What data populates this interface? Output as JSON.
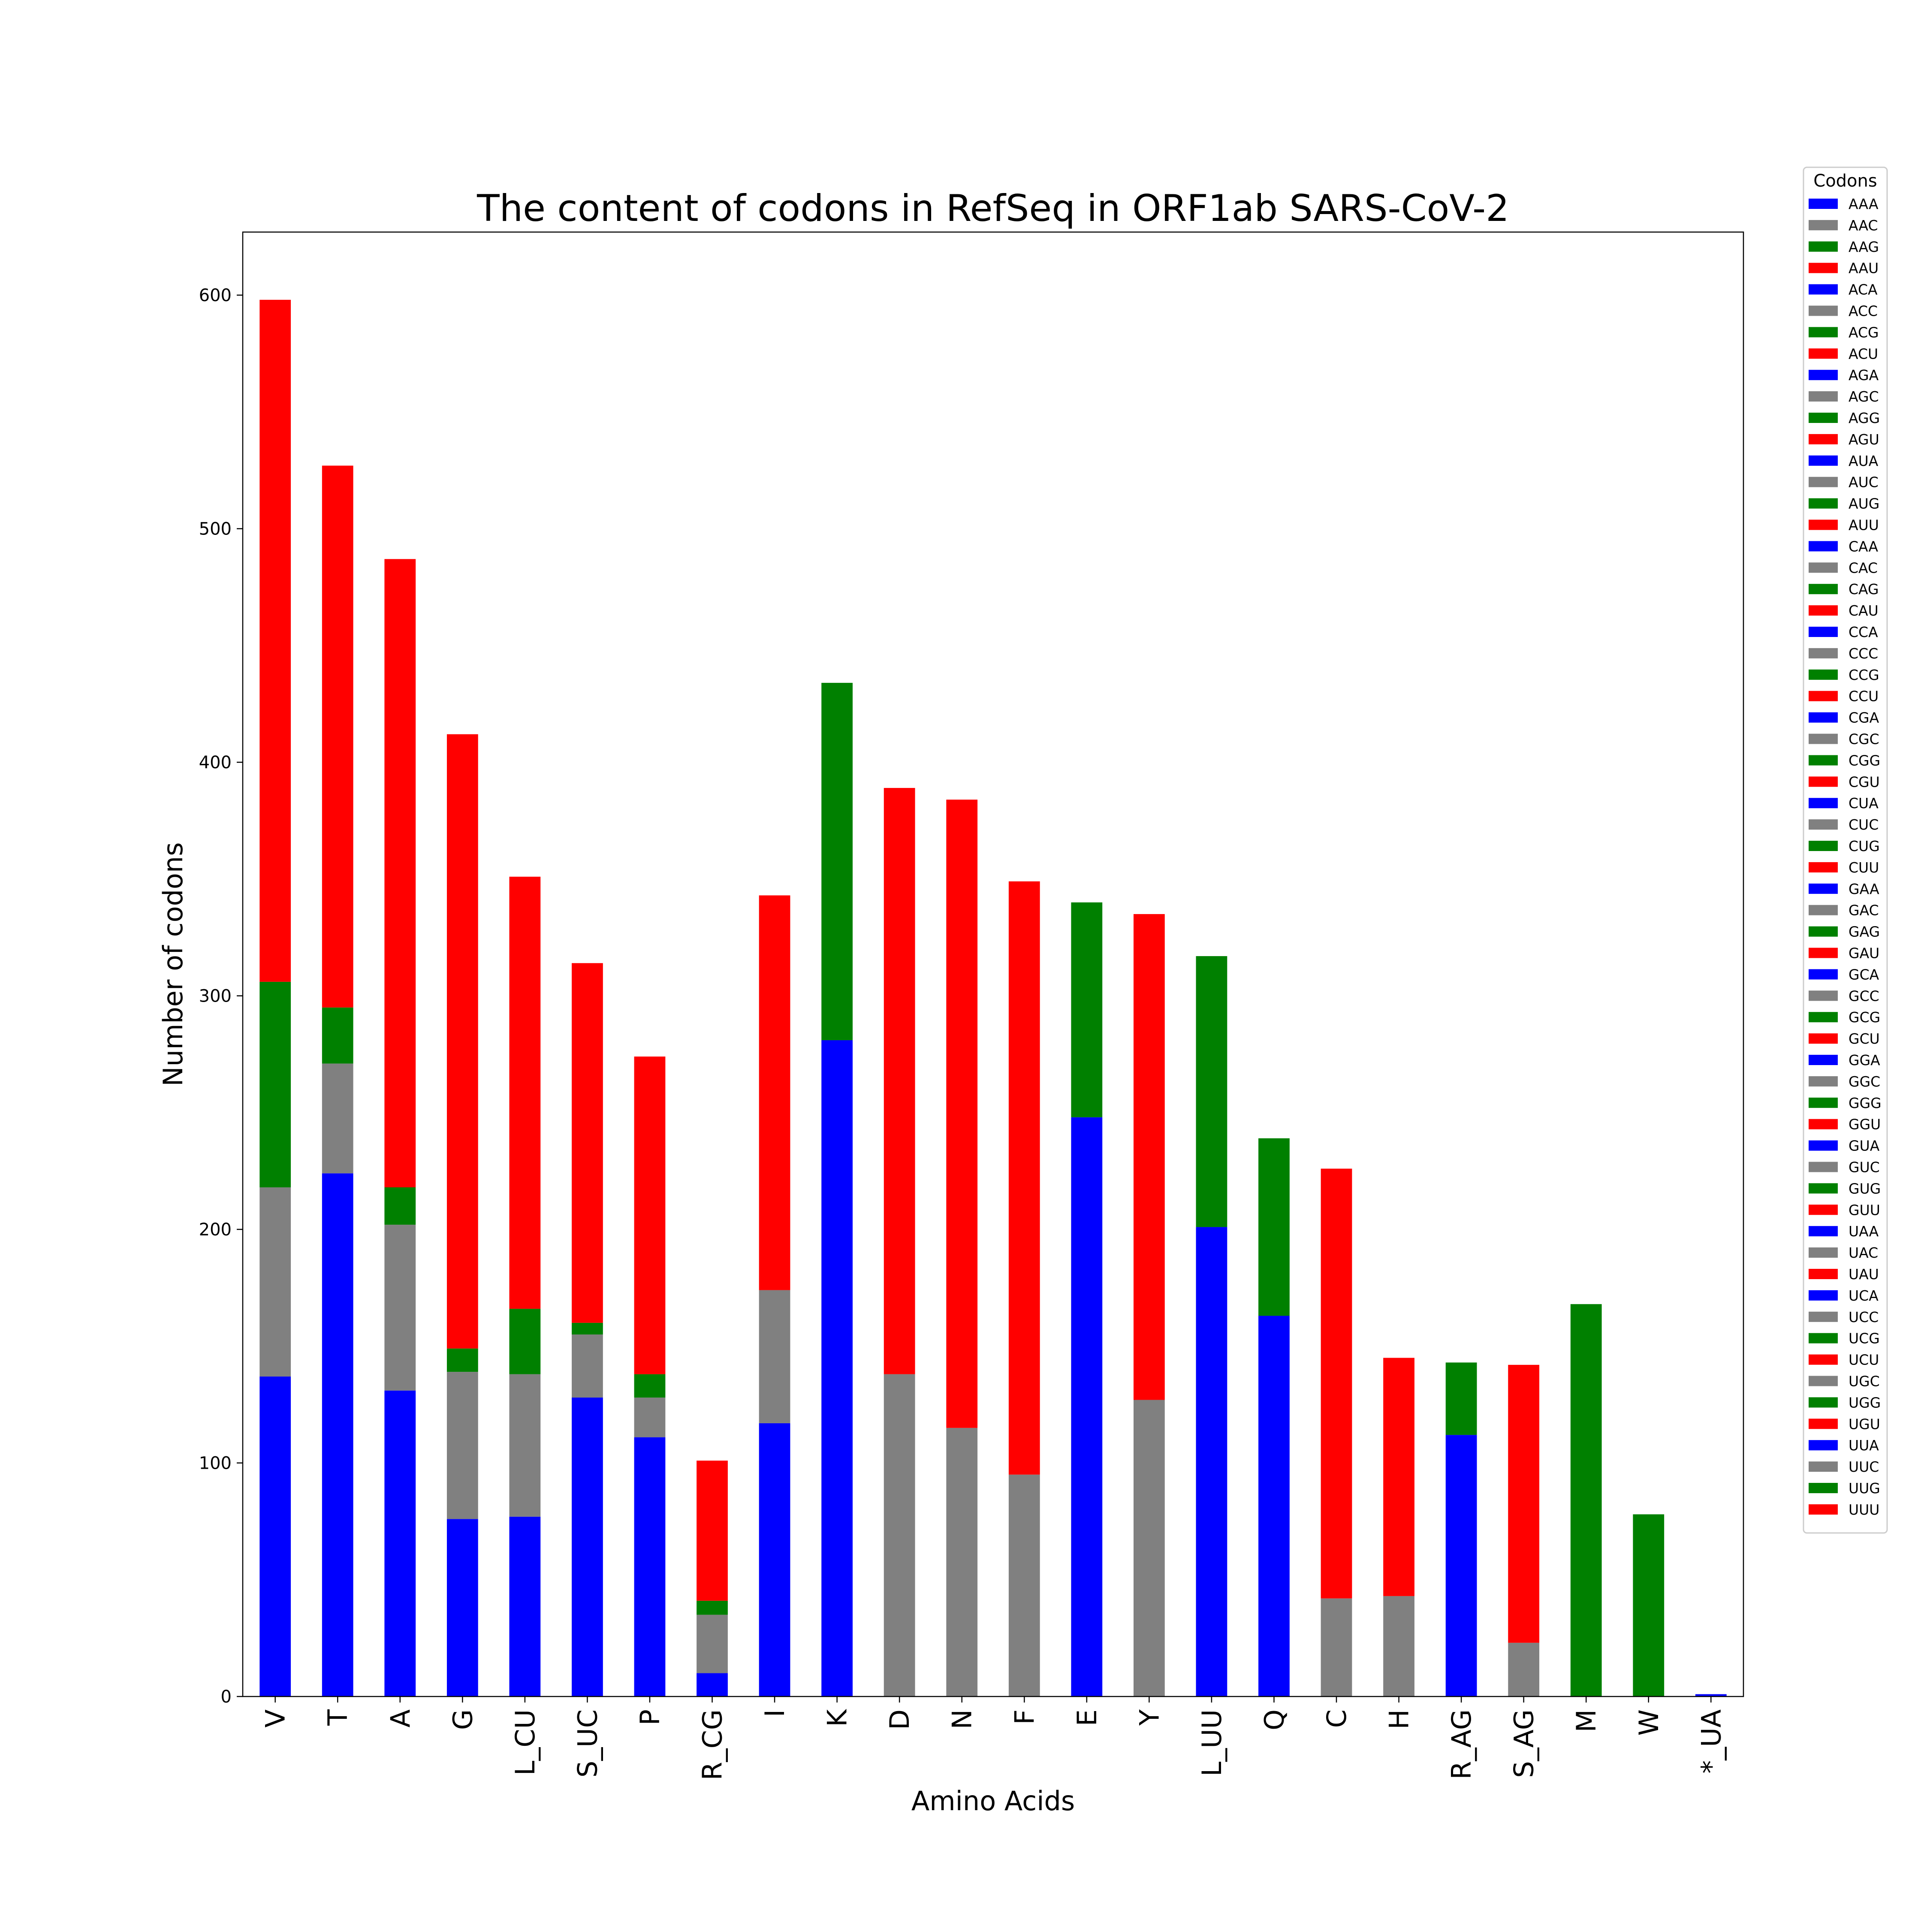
{
  "chart_data": {
    "type": "bar",
    "stacked": true,
    "title": "The content of codons in RefSeq in ORF1ab SARS-CoV-2",
    "xlabel": "Amino Acids",
    "ylabel": "Number of codons",
    "ylim": [
      0,
      627
    ],
    "yticks": [
      0,
      100,
      200,
      300,
      400,
      500,
      600
    ],
    "grid": false,
    "legend": {
      "title": "Codons",
      "placement": "outside-right",
      "entries": [
        {
          "label": "AAA",
          "color": "#0000ff"
        },
        {
          "label": "AAC",
          "color": "#808080"
        },
        {
          "label": "AAG",
          "color": "#008000"
        },
        {
          "label": "AAU",
          "color": "#ff0000"
        },
        {
          "label": "ACA",
          "color": "#0000ff"
        },
        {
          "label": "ACC",
          "color": "#808080"
        },
        {
          "label": "ACG",
          "color": "#008000"
        },
        {
          "label": "ACU",
          "color": "#ff0000"
        },
        {
          "label": "AGA",
          "color": "#0000ff"
        },
        {
          "label": "AGC",
          "color": "#808080"
        },
        {
          "label": "AGG",
          "color": "#008000"
        },
        {
          "label": "AGU",
          "color": "#ff0000"
        },
        {
          "label": "AUA",
          "color": "#0000ff"
        },
        {
          "label": "AUC",
          "color": "#808080"
        },
        {
          "label": "AUG",
          "color": "#008000"
        },
        {
          "label": "AUU",
          "color": "#ff0000"
        },
        {
          "label": "CAA",
          "color": "#0000ff"
        },
        {
          "label": "CAC",
          "color": "#808080"
        },
        {
          "label": "CAG",
          "color": "#008000"
        },
        {
          "label": "CAU",
          "color": "#ff0000"
        },
        {
          "label": "CCA",
          "color": "#0000ff"
        },
        {
          "label": "CCC",
          "color": "#808080"
        },
        {
          "label": "CCG",
          "color": "#008000"
        },
        {
          "label": "CCU",
          "color": "#ff0000"
        },
        {
          "label": "CGA",
          "color": "#0000ff"
        },
        {
          "label": "CGC",
          "color": "#808080"
        },
        {
          "label": "CGG",
          "color": "#008000"
        },
        {
          "label": "CGU",
          "color": "#ff0000"
        },
        {
          "label": "CUA",
          "color": "#0000ff"
        },
        {
          "label": "CUC",
          "color": "#808080"
        },
        {
          "label": "CUG",
          "color": "#008000"
        },
        {
          "label": "CUU",
          "color": "#ff0000"
        },
        {
          "label": "GAA",
          "color": "#0000ff"
        },
        {
          "label": "GAC",
          "color": "#808080"
        },
        {
          "label": "GAG",
          "color": "#008000"
        },
        {
          "label": "GAU",
          "color": "#ff0000"
        },
        {
          "label": "GCA",
          "color": "#0000ff"
        },
        {
          "label": "GCC",
          "color": "#808080"
        },
        {
          "label": "GCG",
          "color": "#008000"
        },
        {
          "label": "GCU",
          "color": "#ff0000"
        },
        {
          "label": "GGA",
          "color": "#0000ff"
        },
        {
          "label": "GGC",
          "color": "#808080"
        },
        {
          "label": "GGG",
          "color": "#008000"
        },
        {
          "label": "GGU",
          "color": "#ff0000"
        },
        {
          "label": "GUA",
          "color": "#0000ff"
        },
        {
          "label": "GUC",
          "color": "#808080"
        },
        {
          "label": "GUG",
          "color": "#008000"
        },
        {
          "label": "GUU",
          "color": "#ff0000"
        },
        {
          "label": "UAA",
          "color": "#0000ff"
        },
        {
          "label": "UAC",
          "color": "#808080"
        },
        {
          "label": "UAU",
          "color": "#ff0000"
        },
        {
          "label": "UCA",
          "color": "#0000ff"
        },
        {
          "label": "UCC",
          "color": "#808080"
        },
        {
          "label": "UCG",
          "color": "#008000"
        },
        {
          "label": "UCU",
          "color": "#ff0000"
        },
        {
          "label": "UGC",
          "color": "#808080"
        },
        {
          "label": "UGG",
          "color": "#008000"
        },
        {
          "label": "UGU",
          "color": "#ff0000"
        },
        {
          "label": "UUA",
          "color": "#0000ff"
        },
        {
          "label": "UUC",
          "color": "#808080"
        },
        {
          "label": "UUG",
          "color": "#008000"
        },
        {
          "label": "UUU",
          "color": "#ff0000"
        }
      ]
    },
    "categories": [
      "V",
      "T",
      "A",
      "G",
      "L_CU",
      "S_UC",
      "P",
      "R_CG",
      "I",
      "K",
      "D",
      "N",
      "F",
      "E",
      "Y",
      "L_UU",
      "Q",
      "C",
      "H",
      "R_AG",
      "S_AG",
      "M",
      "W",
      "*_UA"
    ],
    "bars": [
      {
        "category": "V",
        "segments": [
          {
            "codon": "GUA",
            "value": 137
          },
          {
            "codon": "GUC",
            "value": 81
          },
          {
            "codon": "GUG",
            "value": 88
          },
          {
            "codon": "GUU",
            "value": 292
          }
        ]
      },
      {
        "category": "T",
        "segments": [
          {
            "codon": "ACA",
            "value": 224
          },
          {
            "codon": "ACC",
            "value": 47
          },
          {
            "codon": "ACG",
            "value": 24
          },
          {
            "codon": "ACU",
            "value": 232
          }
        ]
      },
      {
        "category": "A",
        "segments": [
          {
            "codon": "GCA",
            "value": 131
          },
          {
            "codon": "GCC",
            "value": 71
          },
          {
            "codon": "GCG",
            "value": 16
          },
          {
            "codon": "GCU",
            "value": 269
          }
        ]
      },
      {
        "category": "G",
        "segments": [
          {
            "codon": "GGA",
            "value": 76
          },
          {
            "codon": "GGC",
            "value": 63
          },
          {
            "codon": "GGG",
            "value": 10
          },
          {
            "codon": "GGU",
            "value": 263
          }
        ]
      },
      {
        "category": "L_CU",
        "segments": [
          {
            "codon": "CUA",
            "value": 77
          },
          {
            "codon": "CUC",
            "value": 61
          },
          {
            "codon": "CUG",
            "value": 28
          },
          {
            "codon": "CUU",
            "value": 185
          }
        ]
      },
      {
        "category": "S_UC",
        "segments": [
          {
            "codon": "UCA",
            "value": 128
          },
          {
            "codon": "UCC",
            "value": 27
          },
          {
            "codon": "UCG",
            "value": 5
          },
          {
            "codon": "UCU",
            "value": 154
          }
        ]
      },
      {
        "category": "P",
        "segments": [
          {
            "codon": "CCA",
            "value": 111
          },
          {
            "codon": "CCC",
            "value": 17
          },
          {
            "codon": "CCG",
            "value": 10
          },
          {
            "codon": "CCU",
            "value": 136
          }
        ]
      },
      {
        "category": "R_CG",
        "segments": [
          {
            "codon": "CGA",
            "value": 10
          },
          {
            "codon": "CGC",
            "value": 25
          },
          {
            "codon": "CGG",
            "value": 6
          },
          {
            "codon": "CGU",
            "value": 60
          }
        ]
      },
      {
        "category": "I",
        "segments": [
          {
            "codon": "AUA",
            "value": 117
          },
          {
            "codon": "AUC",
            "value": 57
          },
          {
            "codon": "AUU",
            "value": 169
          }
        ]
      },
      {
        "category": "K",
        "segments": [
          {
            "codon": "AAA",
            "value": 281
          },
          {
            "codon": "AAG",
            "value": 153
          }
        ]
      },
      {
        "category": "D",
        "segments": [
          {
            "codon": "GAC",
            "value": 138
          },
          {
            "codon": "GAU",
            "value": 251
          }
        ]
      },
      {
        "category": "N",
        "segments": [
          {
            "codon": "AAC",
            "value": 115
          },
          {
            "codon": "AAU",
            "value": 269
          }
        ]
      },
      {
        "category": "F",
        "segments": [
          {
            "codon": "UUC",
            "value": 95
          },
          {
            "codon": "UUU",
            "value": 254
          }
        ]
      },
      {
        "category": "E",
        "segments": [
          {
            "codon": "GAA",
            "value": 248
          },
          {
            "codon": "GAG",
            "value": 92
          }
        ]
      },
      {
        "category": "Y",
        "segments": [
          {
            "codon": "UAC",
            "value": 127
          },
          {
            "codon": "UAU",
            "value": 208
          }
        ]
      },
      {
        "category": "L_UU",
        "segments": [
          {
            "codon": "UUA",
            "value": 201
          },
          {
            "codon": "UUG",
            "value": 116
          }
        ]
      },
      {
        "category": "Q",
        "segments": [
          {
            "codon": "CAA",
            "value": 163
          },
          {
            "codon": "CAG",
            "value": 76
          }
        ]
      },
      {
        "category": "C",
        "segments": [
          {
            "codon": "UGC",
            "value": 42
          },
          {
            "codon": "UGU",
            "value": 184
          }
        ]
      },
      {
        "category": "H",
        "segments": [
          {
            "codon": "CAC",
            "value": 43
          },
          {
            "codon": "CAU",
            "value": 102
          }
        ]
      },
      {
        "category": "R_AG",
        "segments": [
          {
            "codon": "AGA",
            "value": 112
          },
          {
            "codon": "AGG",
            "value": 31
          }
        ]
      },
      {
        "category": "S_AG",
        "segments": [
          {
            "codon": "AGC",
            "value": 23
          },
          {
            "codon": "AGU",
            "value": 119
          }
        ]
      },
      {
        "category": "M",
        "segments": [
          {
            "codon": "AUG",
            "value": 168
          }
        ]
      },
      {
        "category": "W",
        "segments": [
          {
            "codon": "UGG",
            "value": 78
          }
        ]
      },
      {
        "category": "*_UA",
        "segments": [
          {
            "codon": "UAA",
            "value": 1
          }
        ]
      }
    ]
  }
}
